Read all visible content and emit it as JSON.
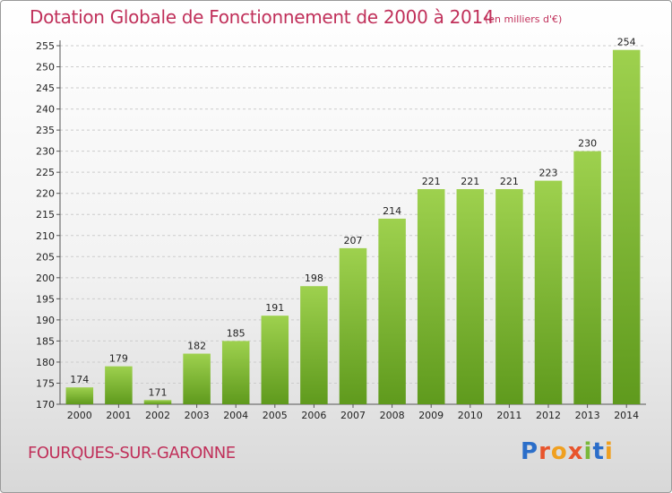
{
  "header": {
    "title": "Dotation Globale de Fonctionnement de 2000 à 2014",
    "subtitle": "(en milliers d'€)"
  },
  "footer": {
    "commune": "FOURQUES-SUR-GARONNE",
    "logo_text": "Proxiti"
  },
  "colors": {
    "bar_top": "#9ed14e",
    "bar_bottom": "#5f9a1d",
    "title": "#c0305a",
    "grid": "#cccccc"
  },
  "chart_data": {
    "type": "bar",
    "title": "Dotation Globale de Fonctionnement de 2000 à 2014",
    "subtitle": "(en milliers d'€)",
    "xlabel": "",
    "ylabel": "",
    "categories": [
      "2000",
      "2001",
      "2002",
      "2003",
      "2004",
      "2005",
      "2006",
      "2007",
      "2008",
      "2009",
      "2010",
      "2011",
      "2012",
      "2013",
      "2014"
    ],
    "values": [
      174,
      179,
      171,
      182,
      185,
      191,
      198,
      207,
      214,
      221,
      221,
      221,
      223,
      230,
      254
    ],
    "ylim": [
      170,
      255
    ],
    "yticks": [
      170,
      175,
      180,
      185,
      190,
      195,
      200,
      205,
      210,
      215,
      220,
      225,
      230,
      235,
      240,
      245,
      250,
      255
    ],
    "grid": "horizontal dashed",
    "legend": "none"
  }
}
